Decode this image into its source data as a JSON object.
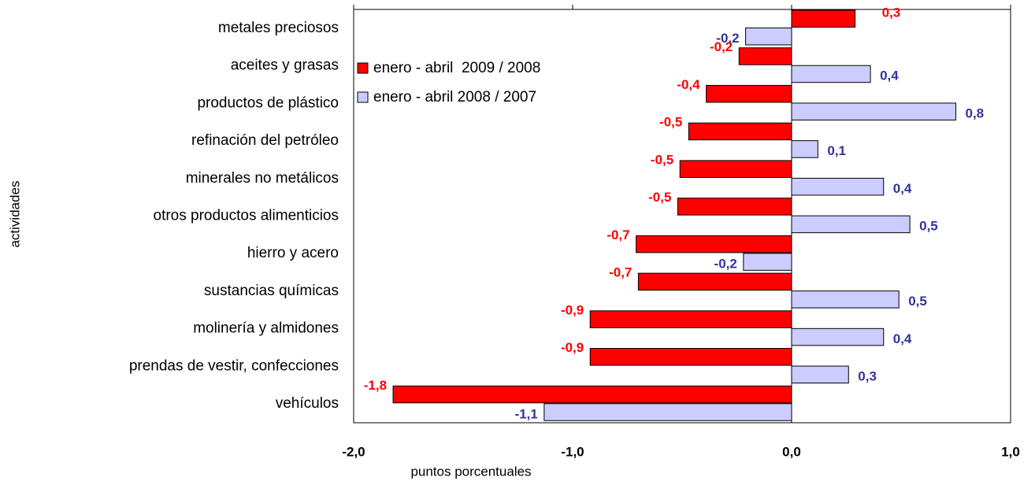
{
  "chart_data": {
    "type": "barh",
    "y_label": "actividades",
    "x_label": "puntos porcentuales",
    "categories": [
      "metales preciosos",
      "aceites y grasas",
      "productos de plástico",
      "refinación del petróleo",
      "minerales no metálicos",
      "otros productos alimenticios",
      "hierro y acero",
      "sustancias químicas",
      "molinería y almidones",
      "prendas de vestir, confecciones",
      "vehículos"
    ],
    "series": [
      {
        "name": "enero - abril  2009 / 2008",
        "color": "#ff0000",
        "label_color": "#ff0000",
        "values": [
          0.29,
          -0.24,
          -0.39,
          -0.47,
          -0.51,
          -0.52,
          -0.71,
          -0.7,
          -0.92,
          -0.92,
          -1.82
        ],
        "value_labels": [
          "0,3",
          "-0,2",
          "-0,4",
          "-0,5",
          "-0,5",
          "-0,5",
          "-0,7",
          "-0,7",
          "-0,9",
          "-0,9",
          "-1,8"
        ]
      },
      {
        "name": "enero - abril 2008 / 2007",
        "color": "#ccccff",
        "label_color": "#333399",
        "values": [
          -0.21,
          0.36,
          0.75,
          0.12,
          0.42,
          0.54,
          -0.22,
          0.49,
          0.42,
          0.26,
          -1.13
        ],
        "value_labels": [
          "-0,2",
          "0,4",
          "0,8",
          "0,1",
          "0,4",
          "0,5",
          "-0,2",
          "0,5",
          "0,4",
          "0,3",
          "-1,1"
        ]
      }
    ],
    "xlim": [
      -2.0,
      1.0
    ],
    "xticks": [
      {
        "value": -2.0,
        "label": "-2,0"
      },
      {
        "value": -1.0,
        "label": "-1,0"
      },
      {
        "value": 0.0,
        "label": "0,0"
      },
      {
        "value": 1.0,
        "label": "1,0"
      }
    ],
    "grid": false,
    "legend": "upper-left"
  }
}
